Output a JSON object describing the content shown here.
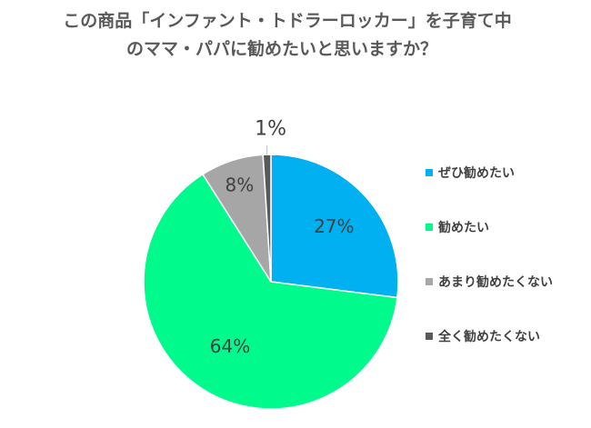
{
  "title": {
    "line1": "この商品「インファント・トドラーロッカー」を子育て中",
    "line2": "のママ・パパに勧めたいと思いますか？"
  },
  "chart_data": {
    "type": "pie",
    "title": "この商品「インファント・トドラーロッカー」を子育て中のママ・パパに勧めたいと思いますか？",
    "categories": [
      "ぜひ勧めたい",
      "勧めたい",
      "あまり勧めたくない",
      "全く勧めたくない"
    ],
    "values": [
      27,
      64,
      8,
      1
    ],
    "data_labels": [
      "27%",
      "64%",
      "8%",
      "1%"
    ],
    "colors": [
      "#00B0F0",
      "#00FA8C",
      "#A6A6A6",
      "#595959"
    ],
    "legend_position": "right",
    "start_angle": "top, clockwise"
  }
}
